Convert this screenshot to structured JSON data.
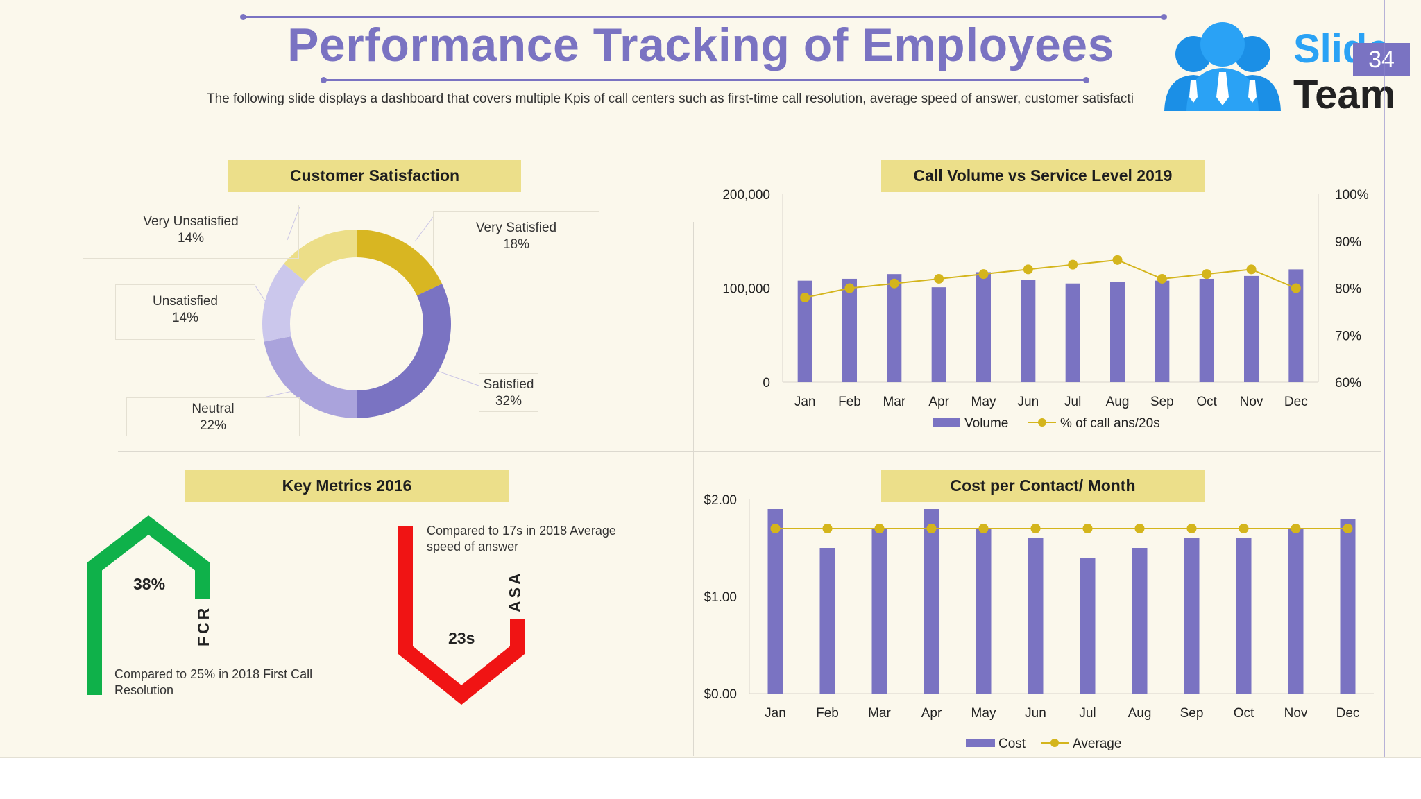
{
  "header": {
    "title": "Performance Tracking of Employees",
    "subtitle": "The following slide displays a dashboard that covers multiple Kpis of call centers such as first-time call resolution, average speed of answer, customer satisfacti"
  },
  "logo": {
    "line1": "Slide",
    "line2": "Team",
    "icon": "team-people-icon"
  },
  "page_number": "34",
  "panels": {
    "customer_satisfaction": {
      "label": "Customer Satisfaction",
      "callouts": {
        "very_unsatisfied": {
          "name": "Very Unsatisfied",
          "pct": "14%"
        },
        "very_satisfied": {
          "name": "Very Satisfied",
          "pct": "18%"
        },
        "unsatisfied": {
          "name": "Unsatisfied",
          "pct": "14%"
        },
        "satisfied": {
          "name": "Satisfied",
          "pct": "32%"
        },
        "neutral": {
          "name": "Neutral",
          "pct": "22%"
        }
      }
    },
    "call_volume": {
      "label": "Call Volume vs Service Level 2019"
    },
    "key_metrics": {
      "label": "Key Metrics 2016",
      "fcr": {
        "value": "38%",
        "tag": "FCR",
        "note_line1": "Compared to 25% in 2018 First Call",
        "note_line2": "Resolution"
      },
      "asa": {
        "value": "23s",
        "tag": "ASA",
        "note_line1": "Compared to 17s in 2018 Average",
        "note_line2": "speed of answer"
      }
    },
    "cost_per_contact": {
      "label": "Cost per Contact/ Month"
    }
  },
  "colors": {
    "purple": "#7a73c2",
    "gold": "#d4b51c",
    "label_bg": "#ecdf8a",
    "fcr_green": "#0fb14a",
    "asa_red": "#f01414"
  },
  "chart_data": [
    {
      "type": "pie",
      "title": "Customer Satisfaction",
      "donut": true,
      "categories": [
        "Very Satisfied",
        "Satisfied",
        "Neutral",
        "Unsatisfied",
        "Very Unsatisfied"
      ],
      "values": [
        18,
        32,
        22,
        14,
        14
      ],
      "colors": [
        "#d8b622",
        "#7a73c2",
        "#aaa3dc",
        "#cbc7ec",
        "#ecde88"
      ]
    },
    {
      "type": "bar",
      "title": "Call Volume vs Service Level 2019",
      "categories": [
        "Jan",
        "Feb",
        "Mar",
        "Apr",
        "May",
        "Jun",
        "Jul",
        "Aug",
        "Sep",
        "Oct",
        "Nov",
        "Dec"
      ],
      "series": [
        {
          "name": "Volume",
          "type": "bar",
          "axis": "left",
          "values": [
            108000,
            110000,
            115000,
            101000,
            117000,
            109000,
            105000,
            107000,
            108000,
            110000,
            113000,
            120000
          ]
        },
        {
          "name": "% of call ans/20s",
          "type": "line",
          "axis": "right",
          "values": [
            78,
            80,
            81,
            82,
            83,
            84,
            85,
            86,
            82,
            83,
            84,
            80
          ]
        }
      ],
      "ylim": [
        0,
        200000
      ],
      "y_ticks": [
        "0",
        "100,000",
        "200,000"
      ],
      "y2lim": [
        60,
        100
      ],
      "y2_ticks": [
        "60%",
        "70%",
        "80%",
        "90%",
        "100%"
      ],
      "legend": "bottom"
    },
    {
      "type": "bar",
      "title": "Cost per Contact/ Month",
      "categories": [
        "Jan",
        "Feb",
        "Mar",
        "Apr",
        "May",
        "Jun",
        "Jul",
        "Aug",
        "Sep",
        "Oct",
        "Nov",
        "Dec"
      ],
      "series": [
        {
          "name": "Cost",
          "type": "bar",
          "values": [
            1.9,
            1.5,
            1.7,
            1.9,
            1.7,
            1.6,
            1.4,
            1.5,
            1.6,
            1.6,
            1.7,
            1.8
          ]
        },
        {
          "name": "Average",
          "type": "line",
          "values": [
            1.7,
            1.7,
            1.7,
            1.7,
            1.7,
            1.7,
            1.7,
            1.7,
            1.7,
            1.7,
            1.7,
            1.7
          ]
        }
      ],
      "ylim": [
        0,
        2
      ],
      "y_ticks": [
        "$0.00",
        "$1.00",
        "$2.00"
      ],
      "legend": "bottom"
    }
  ]
}
